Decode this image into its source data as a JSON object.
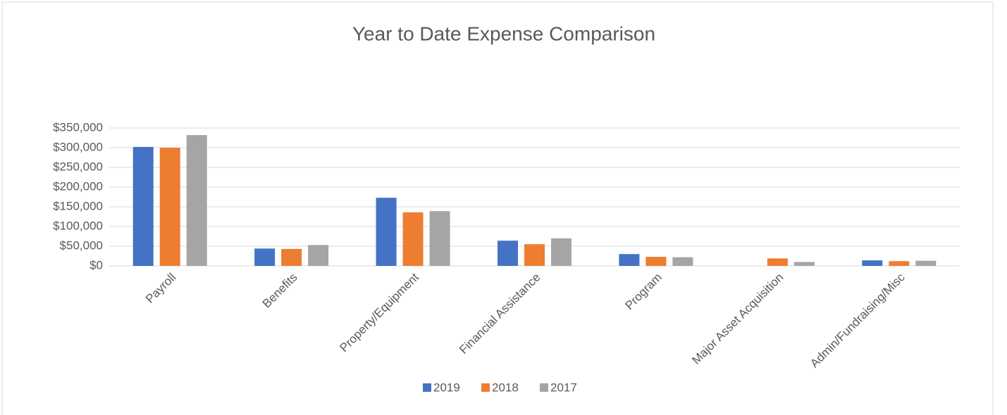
{
  "chart_data": {
    "type": "bar",
    "title": "Year to Date Expense Comparison",
    "categories": [
      "Payroll",
      "Benefits",
      "Property/Equipment",
      "Financial Assistance",
      "Program",
      "Major Asset Acquisition",
      "Admin/Fundraising/Misc"
    ],
    "series": [
      {
        "name": "2019",
        "color": "#4472c4",
        "values": [
          302000,
          44000,
          173000,
          64000,
          30000,
          0,
          14000
        ]
      },
      {
        "name": "2018",
        "color": "#ed7d31",
        "values": [
          300000,
          43000,
          136000,
          55000,
          23000,
          19000,
          12000
        ]
      },
      {
        "name": "2017",
        "color": "#a5a5a5",
        "values": [
          332000,
          53000,
          139000,
          70000,
          22000,
          10000,
          13000
        ]
      }
    ],
    "ylim": [
      0,
      350000
    ],
    "yticks": [
      {
        "value": 0,
        "label": "$0"
      },
      {
        "value": 50000,
        "label": "$50,000"
      },
      {
        "value": 100000,
        "label": "$100,000"
      },
      {
        "value": 150000,
        "label": "$150,000"
      },
      {
        "value": 200000,
        "label": "$200,000"
      },
      {
        "value": 250000,
        "label": "$250,000"
      },
      {
        "value": 300000,
        "label": "$300,000"
      },
      {
        "value": 350000,
        "label": "$350,000"
      }
    ],
    "grid": true,
    "legend": "bottom"
  }
}
